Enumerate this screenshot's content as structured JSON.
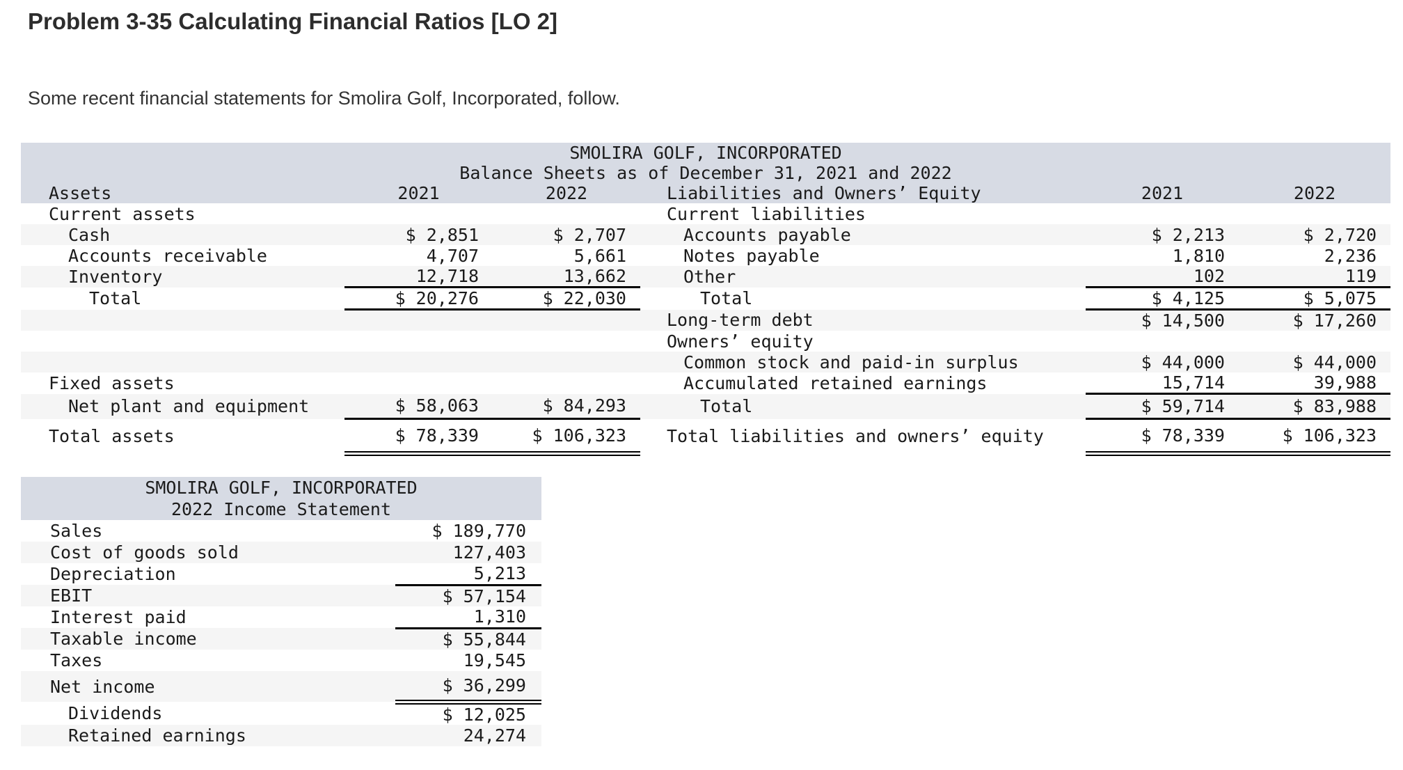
{
  "page": {
    "title": "Problem 3-35 Calculating Financial Ratios [LO 2]",
    "intro": "Some recent financial statements for Smolira Golf, Incorporated, follow."
  },
  "balance_sheet": {
    "title": "SMOLIRA GOLF, INCORPORATED",
    "subtitle": "Balance Sheets as of December 31, 2021 and 2022",
    "left_header": "Assets",
    "right_header": "Liabilities and Owners’ Equity",
    "year_cols": [
      "2021",
      "2022"
    ],
    "rows": [
      {
        "left": {
          "label": "Current assets",
          "ind": 0,
          "v1": "",
          "v2": "",
          "rule": null
        },
        "right": {
          "label": "Current liabilities",
          "ind": 0,
          "v1": "",
          "v2": "",
          "rule": null
        }
      },
      {
        "left": {
          "label": "Cash",
          "ind": 1,
          "v1": "$ 2,851",
          "v2": "$ 2,707",
          "rule": null
        },
        "right": {
          "label": "Accounts payable",
          "ind": 1,
          "v1": "$ 2,213",
          "v2": "$ 2,720",
          "rule": null
        }
      },
      {
        "left": {
          "label": "Accounts receivable",
          "ind": 1,
          "v1": "4,707",
          "v2": "5,661",
          "rule": null
        },
        "right": {
          "label": "Notes payable",
          "ind": 1,
          "v1": "1,810",
          "v2": "2,236",
          "rule": null
        }
      },
      {
        "left": {
          "label": "Inventory",
          "ind": 1,
          "v1": "12,718",
          "v2": "13,662",
          "rule": "single"
        },
        "right": {
          "label": "Other",
          "ind": 1,
          "v1": "102",
          "v2": "119",
          "rule": "single"
        }
      },
      {
        "left": {
          "label": "Total",
          "ind": 2,
          "v1": "$ 20,276",
          "v2": "$ 22,030",
          "rule": "single"
        },
        "right": {
          "label": "Total",
          "ind": 2,
          "v1": "$ 4,125",
          "v2": "$ 5,075",
          "rule": "single"
        }
      },
      {
        "left": {
          "label": "",
          "ind": 0,
          "v1": "",
          "v2": "",
          "rule": null
        },
        "right": {
          "label": "Long-term debt",
          "ind": 0,
          "v1": "$ 14,500",
          "v2": "$ 17,260",
          "rule": null
        }
      },
      {
        "left": {
          "label": "",
          "ind": 0,
          "v1": "",
          "v2": "",
          "rule": null
        },
        "right": {
          "label": "Owners’ equity",
          "ind": 0,
          "v1": "",
          "v2": "",
          "rule": null
        }
      },
      {
        "left": {
          "label": "",
          "ind": 0,
          "v1": "",
          "v2": "",
          "rule": null
        },
        "right": {
          "label": "Common stock and paid-in surplus",
          "ind": 1,
          "v1": "$ 44,000",
          "v2": "$ 44,000",
          "rule": null
        }
      },
      {
        "left": {
          "label": "Fixed assets",
          "ind": 0,
          "v1": "",
          "v2": "",
          "rule": null
        },
        "right": {
          "label": "Accumulated retained earnings",
          "ind": 1,
          "v1": "15,714",
          "v2": "39,988",
          "rule": "single"
        }
      },
      {
        "left": {
          "label": "Net plant and equipment",
          "ind": 1,
          "v1": "$ 58,063",
          "v2": "$ 84,293",
          "rule": "single"
        },
        "right": {
          "label": "Total",
          "ind": 2,
          "v1": "$ 59,714",
          "v2": "$ 83,988",
          "rule": "single"
        }
      },
      {
        "left": {
          "label": "Total assets",
          "ind": 0,
          "v1": "$ 78,339",
          "v2": "$ 106,323",
          "rule": "double"
        },
        "right": {
          "label": "Total liabilities and owners’ equity",
          "ind": 0,
          "v1": "$ 78,339",
          "v2": "$ 106,323",
          "rule": "double"
        }
      }
    ]
  },
  "income_statement": {
    "title": "SMOLIRA GOLF, INCORPORATED",
    "subtitle": "2022 Income Statement",
    "rows": [
      {
        "label": "Sales",
        "ind": 0,
        "value": "$ 189,770",
        "rule": null
      },
      {
        "label": "Cost of goods sold",
        "ind": 0,
        "value": "127,403",
        "rule": null
      },
      {
        "label": "Depreciation",
        "ind": 0,
        "value": "5,213",
        "rule": "single"
      },
      {
        "label": "EBIT",
        "ind": 0,
        "value": "$ 57,154",
        "rule": null
      },
      {
        "label": "Interest paid",
        "ind": 0,
        "value": "1,310",
        "rule": "single"
      },
      {
        "label": "Taxable income",
        "ind": 0,
        "value": "$ 55,844",
        "rule": null
      },
      {
        "label": "Taxes",
        "ind": 0,
        "value": "19,545",
        "rule": null
      },
      {
        "label": "Net income",
        "ind": 0,
        "value": "$ 36,299",
        "rule": "double"
      },
      {
        "label": "Dividends",
        "ind": 1,
        "value": "$ 12,025",
        "rule": null
      },
      {
        "label": "Retained earnings",
        "ind": 1,
        "value": "24,274",
        "rule": null
      }
    ]
  },
  "colors": {
    "header_band": "#d7dbe4",
    "row_stripe": "#f5f5f5",
    "rule": "#000000"
  }
}
